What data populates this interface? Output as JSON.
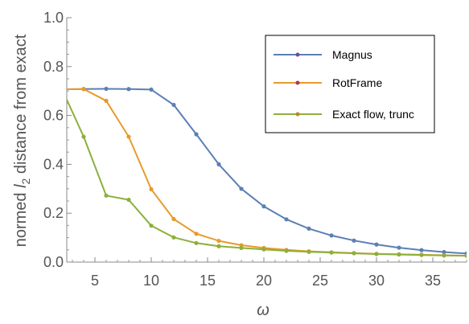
{
  "chart_data": {
    "type": "line",
    "ylabel_parts": [
      "normed ",
      "l",
      "2",
      " distance from exact"
    ],
    "xlabel": "ω",
    "xlim": [
      2.5,
      38
    ],
    "ylim": [
      0,
      1.0
    ],
    "xticks": [
      5,
      10,
      15,
      20,
      25,
      30,
      35
    ],
    "yticks": [
      0.0,
      0.2,
      0.4,
      0.6,
      0.8,
      1.0
    ],
    "ytick_labels": [
      "0.0",
      "0.2",
      "0.4",
      "0.6",
      "0.8",
      "1.0"
    ],
    "x": [
      2,
      4,
      6,
      8,
      10,
      12,
      14,
      16,
      18,
      20,
      22,
      24,
      26,
      28,
      30,
      32,
      34,
      36,
      38
    ],
    "series": [
      {
        "name": "Magnus",
        "color": "#5B7FB6",
        "values": [
          0.707,
          0.708,
          0.709,
          0.708,
          0.706,
          0.643,
          0.523,
          0.4,
          0.3,
          0.228,
          0.175,
          0.137,
          0.109,
          0.088,
          0.072,
          0.059,
          0.049,
          0.041,
          0.035
        ]
      },
      {
        "name": "RotFrame",
        "color": "#E79B2C",
        "values": [
          0.707,
          0.708,
          0.66,
          0.513,
          0.298,
          0.176,
          0.116,
          0.087,
          0.069,
          0.058,
          0.05,
          0.044,
          0.04,
          0.037,
          0.034,
          0.032,
          0.03,
          0.028,
          0.026
        ]
      },
      {
        "name": "Exact flow, trunc",
        "color": "#8CB03B",
        "values": [
          0.715,
          0.513,
          0.272,
          0.255,
          0.149,
          0.101,
          0.078,
          0.065,
          0.058,
          0.052,
          0.046,
          0.042,
          0.039,
          0.036,
          0.033,
          0.031,
          0.029,
          0.027,
          0.026
        ]
      }
    ],
    "legend_position": "top-right"
  }
}
